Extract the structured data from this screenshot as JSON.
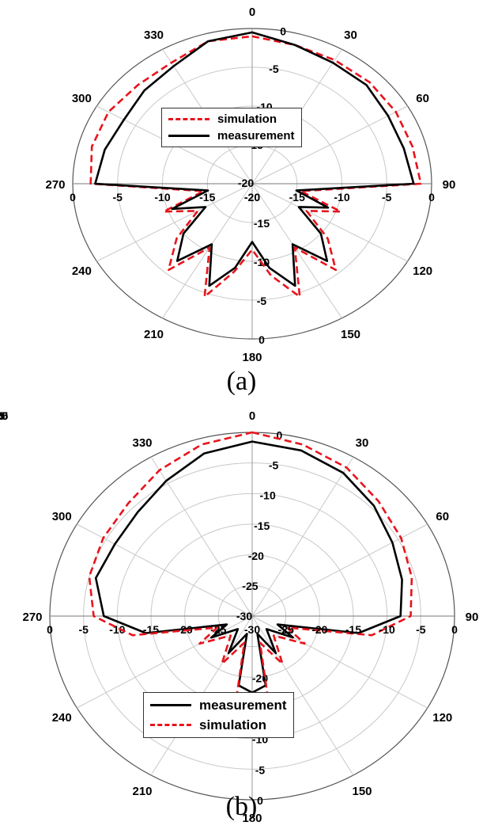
{
  "chart_data": [
    {
      "type": "polar-line",
      "panel_label": "(a)",
      "angle_ticks": [
        "0",
        "30",
        "60",
        "90",
        "120",
        "150",
        "180",
        "210",
        "240",
        "270",
        "300",
        "330"
      ],
      "radial_ticks_upper_right": [
        "0",
        "-5",
        "-10",
        "-15",
        "-20"
      ],
      "radial_ticks_left": [
        "-20",
        "-15",
        "-10",
        "-5",
        "0"
      ],
      "radial_ticks_right": [
        "-20",
        "-15",
        "-10",
        "-5",
        "0"
      ],
      "radial_ticks_bottom": [
        "-15",
        "-10",
        "-5",
        "0"
      ],
      "rlim": [
        -20,
        0
      ],
      "grid": true,
      "legend_position": "center",
      "series": [
        {
          "name": "simulation",
          "color": "#e8141c",
          "style": "dashed",
          "theta": [
            0,
            15,
            30,
            45,
            60,
            75,
            90,
            100,
            110,
            120,
            130,
            140,
            150,
            160,
            170,
            180,
            190,
            200,
            210,
            220,
            230,
            240,
            250,
            260,
            270,
            285,
            300,
            315,
            330,
            345
          ],
          "r": [
            -1,
            -1.5,
            -1.6,
            -1.5,
            -1.5,
            -1.5,
            -1.2,
            -14.5,
            -9.5,
            -13,
            -9,
            -5.5,
            -10.5,
            -4.5,
            -8,
            -11.5,
            -8.5,
            -4.5,
            -10.5,
            -5.5,
            -9,
            -13,
            -9.5,
            -14.5,
            -2,
            -1.5,
            -1.5,
            -2,
            -2,
            -1
          ]
        },
        {
          "name": "measurement",
          "color": "#000000",
          "style": "solid",
          "theta": [
            0,
            15,
            30,
            45,
            60,
            75,
            90,
            100,
            110,
            120,
            130,
            140,
            150,
            160,
            170,
            180,
            190,
            200,
            210,
            220,
            230,
            240,
            250,
            260,
            270,
            285,
            300,
            315,
            330,
            345
          ],
          "r": [
            -0.5,
            -1.5,
            -2,
            -2,
            -2.5,
            -2.5,
            -2,
            -15,
            -11,
            -14,
            -10,
            -7,
            -11,
            -6,
            -9,
            -12.5,
            -9,
            -6,
            -11,
            -7,
            -10,
            -14,
            -10.5,
            -15,
            -2.5,
            -3,
            -3.5,
            -3,
            -2.5,
            -1
          ]
        }
      ]
    },
    {
      "type": "polar-line",
      "panel_label": "(b)",
      "angle_ticks": [
        "0",
        "30",
        "60",
        "90",
        "120",
        "150",
        "180",
        "210",
        "240",
        "270",
        "300",
        "330"
      ],
      "radial_ticks_upper": [
        "0",
        "-5",
        "-10",
        "-15",
        "-20",
        "-25",
        "-30"
      ],
      "radial_ticks_horizontal": [
        "0",
        "-5",
        "-10",
        "-15",
        "-20",
        "-25",
        "-30",
        "-25",
        "-20",
        "-15",
        "-10",
        "-5",
        "0"
      ],
      "radial_ticks_lower": [
        "-20",
        "-15",
        "-10",
        "-5",
        "0"
      ],
      "rlim": [
        -30,
        0
      ],
      "grid": true,
      "legend_position": "bottom",
      "series": [
        {
          "name": "measurement",
          "color": "#000000",
          "style": "solid",
          "theta": [
            0,
            15,
            30,
            45,
            60,
            75,
            90,
            100,
            110,
            120,
            135,
            150,
            165,
            170,
            180,
            190,
            195,
            210,
            225,
            240,
            250,
            260,
            270,
            285,
            300,
            315,
            330,
            345
          ],
          "r": [
            -1.5,
            -2,
            -3,
            -4.5,
            -6,
            -7,
            -8,
            -14,
            -26,
            -23,
            -27,
            -23,
            -27,
            -18.5,
            -17.5,
            -18.5,
            -27,
            -23,
            -27,
            -23,
            -26,
            -14,
            -8,
            -6,
            -6.5,
            -6,
            -4.5,
            -2.5
          ]
        },
        {
          "name": "simulation",
          "color": "#e8141c",
          "style": "dashed",
          "theta": [
            0,
            15,
            30,
            45,
            60,
            75,
            90,
            100,
            110,
            120,
            135,
            150,
            165,
            170,
            180,
            190,
            195,
            210,
            225,
            240,
            250,
            260,
            270,
            285,
            300,
            315,
            330,
            345
          ],
          "r": [
            0,
            -1,
            -2,
            -3.5,
            -4.5,
            -5.5,
            -6.5,
            -12,
            -24.5,
            -21,
            -25.5,
            -21,
            -25.5,
            -17,
            -16,
            -17,
            -25.5,
            -21,
            -25.5,
            -21,
            -24.5,
            -12,
            -6.5,
            -5,
            -4.5,
            -4,
            -2.5,
            -1
          ]
        }
      ]
    }
  ]
}
